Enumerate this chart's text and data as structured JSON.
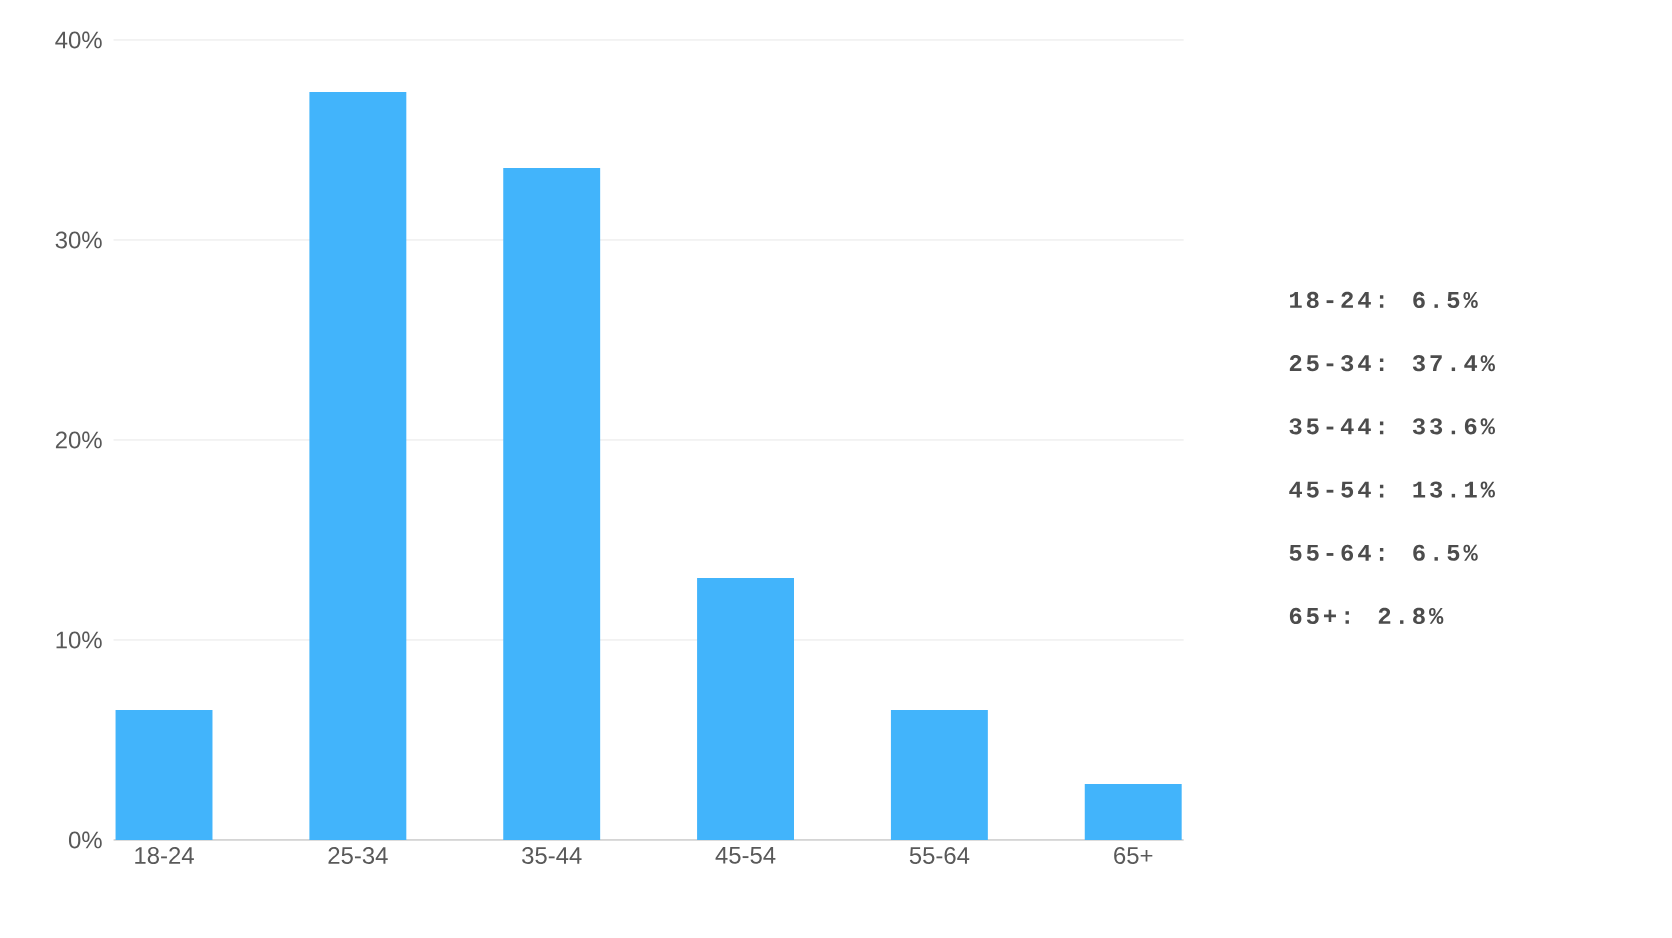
{
  "chart_data": {
    "type": "bar",
    "categories": [
      "18-24",
      "25-34",
      "35-44",
      "45-54",
      "55-64",
      "65+"
    ],
    "values": [
      6.5,
      37.4,
      33.6,
      13.1,
      6.5,
      2.8
    ],
    "color": "#42b4fb",
    "annotations": [
      "18-24: 6.5%",
      "25-34: 37.4%",
      "35-44: 33.6%",
      "45-54: 13.1%",
      "55-64: 6.5%",
      "65+: 2.8%"
    ],
    "ylim": [
      0,
      40
    ],
    "yticks": [
      {
        "value": 0,
        "label": "0%"
      },
      {
        "value": 10,
        "label": "10%"
      },
      {
        "value": 20,
        "label": "20%"
      },
      {
        "value": 30,
        "label": "30%"
      },
      {
        "value": 40,
        "label": "40%"
      }
    ],
    "grid": "y"
  }
}
